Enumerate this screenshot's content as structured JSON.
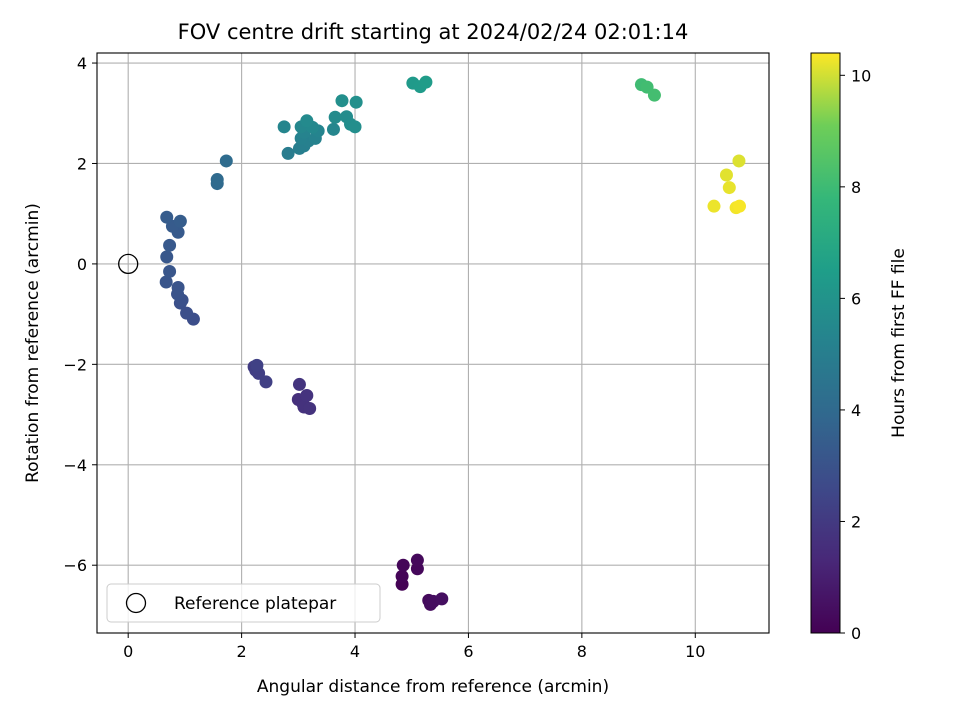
{
  "chart_data": {
    "type": "scatter",
    "title": "FOV centre drift starting at 2024/02/24 02:01:14",
    "xlabel": "Angular distance from reference (arcmin)",
    "ylabel": "Rotation from reference (arcmin)",
    "xlim": [
      -0.55,
      11.3
    ],
    "ylim": [
      -7.35,
      4.2
    ],
    "xticks": [
      0,
      2,
      4,
      6,
      8,
      10
    ],
    "yticks": [
      -6,
      -4,
      -2,
      0,
      2,
      4
    ],
    "grid": true,
    "legend": {
      "placement": "lower-left",
      "entries": [
        "Reference platepar"
      ]
    },
    "reference_point": {
      "x": 0,
      "y": 0
    },
    "colorbar": {
      "label": "Hours from first FF file",
      "range": [
        0,
        10.4
      ],
      "ticks": [
        0,
        2,
        4,
        6,
        8,
        10
      ],
      "colormap": "viridis"
    },
    "points": [
      {
        "x": 4.83,
        "y": -6.38,
        "h": 0.05
      },
      {
        "x": 4.83,
        "y": -6.22,
        "h": 0.1
      },
      {
        "x": 4.85,
        "y": -6.0,
        "h": 0.15
      },
      {
        "x": 5.1,
        "y": -6.07,
        "h": 0.2
      },
      {
        "x": 5.1,
        "y": -5.9,
        "h": 0.25
      },
      {
        "x": 5.3,
        "y": -6.7,
        "h": 0.3
      },
      {
        "x": 5.33,
        "y": -6.78,
        "h": 0.35
      },
      {
        "x": 5.38,
        "y": -6.72,
        "h": 0.4
      },
      {
        "x": 5.53,
        "y": -6.67,
        "h": 0.45
      },
      {
        "x": 3.0,
        "y": -2.7,
        "h": 1.6
      },
      {
        "x": 3.08,
        "y": -2.78,
        "h": 1.65
      },
      {
        "x": 3.1,
        "y": -2.85,
        "h": 1.7
      },
      {
        "x": 3.2,
        "y": -2.88,
        "h": 1.72
      },
      {
        "x": 3.15,
        "y": -2.62,
        "h": 1.75
      },
      {
        "x": 3.02,
        "y": -2.4,
        "h": 1.78
      },
      {
        "x": 2.22,
        "y": -2.05,
        "h": 2.1
      },
      {
        "x": 2.25,
        "y": -2.12,
        "h": 2.15
      },
      {
        "x": 2.3,
        "y": -2.18,
        "h": 2.2
      },
      {
        "x": 2.43,
        "y": -2.35,
        "h": 2.25
      },
      {
        "x": 2.27,
        "y": -2.02,
        "h": 2.3
      },
      {
        "x": 1.15,
        "y": -1.1,
        "h": 2.8
      },
      {
        "x": 1.03,
        "y": -0.98,
        "h": 2.85
      },
      {
        "x": 0.92,
        "y": -0.78,
        "h": 2.9
      },
      {
        "x": 0.95,
        "y": -0.72,
        "h": 2.95
      },
      {
        "x": 0.87,
        "y": -0.6,
        "h": 3.0
      },
      {
        "x": 0.88,
        "y": -0.47,
        "h": 3.05
      },
      {
        "x": 0.67,
        "y": -0.36,
        "h": 3.1
      },
      {
        "x": 0.73,
        "y": -0.15,
        "h": 3.15
      },
      {
        "x": 0.68,
        "y": 0.14,
        "h": 3.2
      },
      {
        "x": 0.73,
        "y": 0.37,
        "h": 3.25
      },
      {
        "x": 0.88,
        "y": 0.63,
        "h": 3.3
      },
      {
        "x": 0.78,
        "y": 0.75,
        "h": 3.35
      },
      {
        "x": 0.68,
        "y": 0.93,
        "h": 3.4
      },
      {
        "x": 0.92,
        "y": 0.85,
        "h": 3.45
      },
      {
        "x": 1.57,
        "y": 1.6,
        "h": 4.0
      },
      {
        "x": 1.57,
        "y": 1.68,
        "h": 4.05
      },
      {
        "x": 1.73,
        "y": 2.05,
        "h": 4.1
      },
      {
        "x": 2.82,
        "y": 2.2,
        "h": 4.9
      },
      {
        "x": 3.02,
        "y": 2.3,
        "h": 5.0
      },
      {
        "x": 3.1,
        "y": 2.35,
        "h": 5.05
      },
      {
        "x": 3.18,
        "y": 2.45,
        "h": 5.1
      },
      {
        "x": 3.05,
        "y": 2.5,
        "h": 5.15
      },
      {
        "x": 3.3,
        "y": 2.5,
        "h": 5.2
      },
      {
        "x": 3.1,
        "y": 2.62,
        "h": 5.25
      },
      {
        "x": 3.35,
        "y": 2.65,
        "h": 5.3
      },
      {
        "x": 2.75,
        "y": 2.73,
        "h": 5.35
      },
      {
        "x": 3.62,
        "y": 2.68,
        "h": 5.4
      },
      {
        "x": 3.05,
        "y": 2.73,
        "h": 5.45
      },
      {
        "x": 3.25,
        "y": 2.72,
        "h": 5.5
      },
      {
        "x": 3.15,
        "y": 2.85,
        "h": 5.55
      },
      {
        "x": 3.65,
        "y": 2.92,
        "h": 5.6
      },
      {
        "x": 3.85,
        "y": 2.93,
        "h": 5.65
      },
      {
        "x": 3.92,
        "y": 2.78,
        "h": 5.7
      },
      {
        "x": 4.0,
        "y": 2.73,
        "h": 5.75
      },
      {
        "x": 3.77,
        "y": 3.25,
        "h": 5.8
      },
      {
        "x": 4.02,
        "y": 3.22,
        "h": 5.85
      },
      {
        "x": 5.02,
        "y": 3.6,
        "h": 6.3
      },
      {
        "x": 5.15,
        "y": 3.53,
        "h": 6.35
      },
      {
        "x": 5.25,
        "y": 3.62,
        "h": 6.4
      },
      {
        "x": 9.05,
        "y": 3.57,
        "h": 8.05
      },
      {
        "x": 9.15,
        "y": 3.52,
        "h": 8.1
      },
      {
        "x": 9.28,
        "y": 3.36,
        "h": 8.15
      },
      {
        "x": 10.77,
        "y": 2.05,
        "h": 10.1
      },
      {
        "x": 10.55,
        "y": 1.77,
        "h": 10.15
      },
      {
        "x": 10.6,
        "y": 1.52,
        "h": 10.2
      },
      {
        "x": 10.33,
        "y": 1.15,
        "h": 10.25
      },
      {
        "x": 10.72,
        "y": 1.12,
        "h": 10.3
      },
      {
        "x": 10.78,
        "y": 1.15,
        "h": 10.35
      }
    ]
  }
}
